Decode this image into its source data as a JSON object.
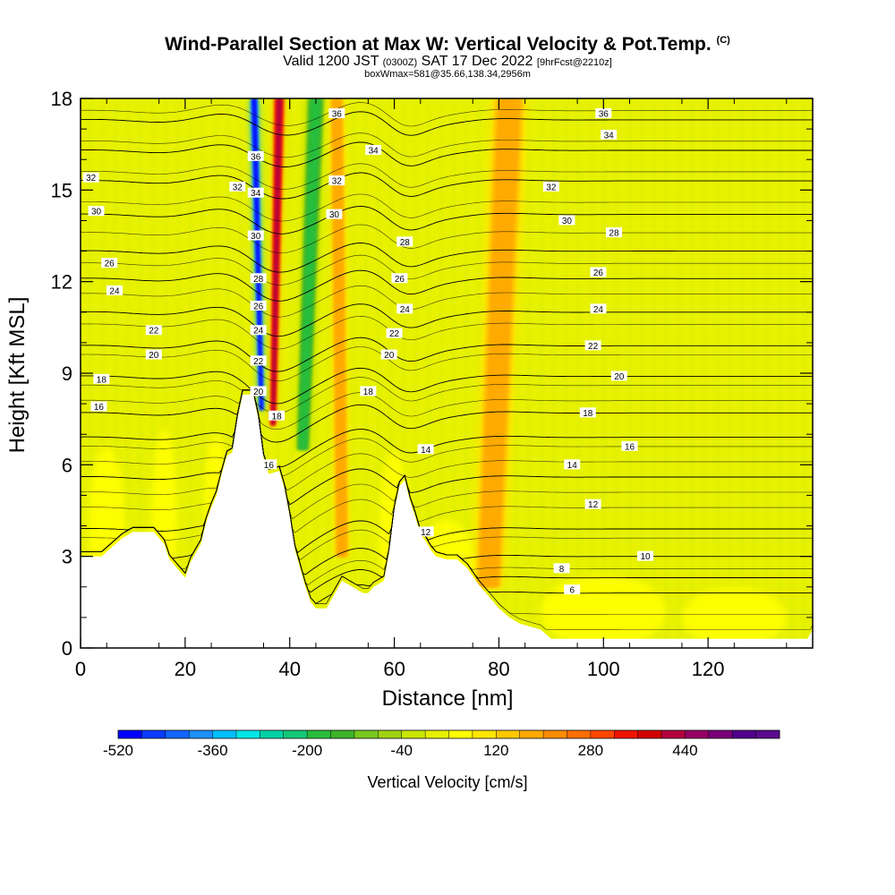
{
  "header": {
    "title_main": "Wind-Parallel Section at Max W: Vertical Velocity & Pot.Temp.",
    "title_mark": "(C)",
    "valid_prefix": "Valid 1200 JST",
    "valid_z": "(0300Z)",
    "valid_date": "SAT 17 Dec 2022",
    "forecast": "[9hrFcst@2210z]",
    "boxinfo": "boxWmax=581@35.66,138.34,2956m"
  },
  "chart_data": {
    "type": "heatmap",
    "xlabel": "Distance [nm]",
    "ylabel": "Height [Kft MSL]",
    "xlim": [
      0,
      140
    ],
    "ylim": [
      0,
      18
    ],
    "x_ticks": [
      "0",
      "20",
      "40",
      "60",
      "80",
      "100",
      "120"
    ],
    "y_ticks": [
      "0",
      "3",
      "6",
      "9",
      "12",
      "15",
      "18"
    ],
    "colorbar_label": "Vertical Velocity [cm/s]",
    "colorbar_ticks": [
      "-520",
      "-360",
      "-200",
      "-40",
      "120",
      "280",
      "440"
    ],
    "colorbar_range": [
      -520,
      600
    ],
    "colorbar_step": 40,
    "colorbar_colors": [
      "#0000ff",
      "#0a3cff",
      "#1464ff",
      "#1e90ff",
      "#00bfff",
      "#00e5e5",
      "#00d2a5",
      "#14c878",
      "#28be3c",
      "#3cb428",
      "#78c81e",
      "#a0d214",
      "#c8e600",
      "#e6f000",
      "#ffff00",
      "#ffe600",
      "#ffc800",
      "#ffaa00",
      "#ff8c00",
      "#ff6e00",
      "#ff4600",
      "#f01400",
      "#d20000",
      "#b4003c",
      "#960064",
      "#780078",
      "#50008c",
      "#5a0a8c"
    ],
    "background_value_cm_s": 0,
    "max_updraft_cm_s": 581,
    "terrain_profile": [
      [
        0,
        3
      ],
      [
        4,
        3
      ],
      [
        6,
        3.3
      ],
      [
        8,
        3.6
      ],
      [
        10,
        3.8
      ],
      [
        14,
        3.8
      ],
      [
        16,
        3.4
      ],
      [
        17,
        2.9
      ],
      [
        18,
        2.7
      ],
      [
        20,
        2.3
      ],
      [
        21,
        2.8
      ],
      [
        23,
        3.4
      ],
      [
        24,
        4.1
      ],
      [
        25,
        4.6
      ],
      [
        26,
        5.0
      ],
      [
        27,
        5.7
      ],
      [
        28,
        6.3
      ],
      [
        29,
        6.4
      ],
      [
        30,
        7.5
      ],
      [
        31,
        8.3
      ],
      [
        33,
        8.3
      ],
      [
        34,
        7.5
      ],
      [
        35,
        6.2
      ],
      [
        36,
        5.7
      ],
      [
        38,
        5.8
      ],
      [
        39,
        5.2
      ],
      [
        40,
        4.3
      ],
      [
        41,
        3.2
      ],
      [
        43,
        2.0
      ],
      [
        44,
        1.5
      ],
      [
        45,
        1.3
      ],
      [
        47,
        1.3
      ],
      [
        49,
        1.9
      ],
      [
        50,
        2.2
      ],
      [
        52,
        2.0
      ],
      [
        54,
        1.8
      ],
      [
        55,
        1.8
      ],
      [
        56,
        2.0
      ],
      [
        58,
        2.2
      ],
      [
        59,
        3.1
      ],
      [
        60,
        4.5
      ],
      [
        61,
        5.3
      ],
      [
        62,
        5.5
      ],
      [
        63,
        4.8
      ],
      [
        64,
        4.3
      ],
      [
        65,
        3.7
      ],
      [
        66,
        3.5
      ],
      [
        67,
        3.2
      ],
      [
        68,
        3.0
      ],
      [
        70,
        2.9
      ],
      [
        72,
        2.9
      ],
      [
        74,
        2.6
      ],
      [
        76,
        2.1
      ],
      [
        78,
        1.7
      ],
      [
        80,
        1.3
      ],
      [
        82,
        1.0
      ],
      [
        84,
        0.8
      ],
      [
        86,
        0.7
      ],
      [
        88,
        0.6
      ],
      [
        90,
        0.3
      ],
      [
        139,
        0.3
      ],
      [
        140,
        0.6
      ]
    ],
    "updraft_bands": [
      {
        "x_center": 36.8,
        "y_bottom": 7.3,
        "x_top": 38.0,
        "w_bottom": 1.3,
        "w_top": 2.4,
        "peak": "red"
      },
      {
        "x_center": 34.6,
        "y_bottom": 7.8,
        "x_top": 33.2,
        "w_bottom": 0.9,
        "w_top": 1.4,
        "peak": "blue"
      },
      {
        "x_center": 42.5,
        "y_bottom": 6.5,
        "x_top": 45.0,
        "w_bottom": 3.0,
        "w_top": 4.0,
        "peak": "green"
      },
      {
        "x_center": 50.0,
        "y_bottom": 3.0,
        "x_top": 49.0,
        "w_bottom": 3.0,
        "w_top": 3.0,
        "peak": "orange"
      },
      {
        "x_center": 78.0,
        "y_bottom": 2.0,
        "x_top": 82.0,
        "w_bottom": 6.0,
        "w_top": 7.0,
        "peak": "orange"
      }
    ],
    "isentropes": [
      {
        "theta": "6",
        "lx": 94,
        "ly": 1.9,
        "y_far": 1.8
      },
      {
        "theta": "8",
        "lx": 92,
        "ly": 2.6,
        "y_far": 2.3
      },
      {
        "theta": "10",
        "lx": 108,
        "ly": 3.0,
        "y_far": 3.0
      },
      {
        "theta": "12",
        "lx": 66,
        "ly": 3.8,
        "y_far": 3.9
      },
      {
        "theta": "12",
        "lx": 98,
        "ly": 4.7,
        "y_far": 4.6
      },
      {
        "theta": "14",
        "lx": 66,
        "ly": 6.5,
        "y_far": 5.6
      },
      {
        "theta": "14",
        "lx": 94,
        "ly": 6.0,
        "y_far": 5.6
      },
      {
        "theta": "16",
        "lx": 3.5,
        "ly": 7.9,
        "y_far": 6.9
      },
      {
        "theta": "16",
        "lx": 36,
        "ly": 6.0,
        "y_far": 6.9
      },
      {
        "theta": "16",
        "lx": 105,
        "ly": 6.6,
        "y_far": 6.9
      },
      {
        "theta": "18",
        "lx": 4,
        "ly": 8.8,
        "y_far": 7.7
      },
      {
        "theta": "18",
        "lx": 37.5,
        "ly": 7.6,
        "y_far": 7.7
      },
      {
        "theta": "18",
        "lx": 55,
        "ly": 8.4,
        "y_far": 7.7
      },
      {
        "theta": "18",
        "lx": 97,
        "ly": 7.7,
        "y_far": 7.7
      },
      {
        "theta": "20",
        "lx": 14,
        "ly": 9.6,
        "y_far": 8.9
      },
      {
        "theta": "20",
        "lx": 34,
        "ly": 8.4,
        "y_far": 8.9
      },
      {
        "theta": "20",
        "lx": 59,
        "ly": 9.6,
        "y_far": 8.9
      },
      {
        "theta": "20",
        "lx": 103,
        "ly": 8.9,
        "y_far": 8.9
      },
      {
        "theta": "22",
        "lx": 14,
        "ly": 10.4,
        "y_far": 9.9
      },
      {
        "theta": "22",
        "lx": 34,
        "ly": 9.4,
        "y_far": 9.9
      },
      {
        "theta": "22",
        "lx": 60,
        "ly": 10.3,
        "y_far": 9.9
      },
      {
        "theta": "22",
        "lx": 98,
        "ly": 9.9,
        "y_far": 9.9
      },
      {
        "theta": "24",
        "lx": 6.5,
        "ly": 11.7,
        "y_far": 11.0
      },
      {
        "theta": "24",
        "lx": 34,
        "ly": 10.4,
        "y_far": 11.0
      },
      {
        "theta": "24",
        "lx": 62,
        "ly": 11.1,
        "y_far": 11.0
      },
      {
        "theta": "24",
        "lx": 99,
        "ly": 11.1,
        "y_far": 11.0
      },
      {
        "theta": "26",
        "lx": 5.5,
        "ly": 12.6,
        "y_far": 12.1
      },
      {
        "theta": "26",
        "lx": 34,
        "ly": 11.2,
        "y_far": 12.1
      },
      {
        "theta": "26",
        "lx": 61,
        "ly": 12.1,
        "y_far": 12.1
      },
      {
        "theta": "26",
        "lx": 99,
        "ly": 12.3,
        "y_far": 12.1
      },
      {
        "theta": "28",
        "lx": 34,
        "ly": 12.1,
        "y_far": 13.0
      },
      {
        "theta": "28",
        "lx": 62,
        "ly": 13.3,
        "y_far": 13.0
      },
      {
        "theta": "28",
        "lx": 102,
        "ly": 13.6,
        "y_far": 13.0
      },
      {
        "theta": "30",
        "lx": 3,
        "ly": 14.3,
        "y_far": 14.2
      },
      {
        "theta": "30",
        "lx": 33.5,
        "ly": 13.5,
        "y_far": 14.2
      },
      {
        "theta": "30",
        "lx": 48.5,
        "ly": 14.2,
        "y_far": 14.2
      },
      {
        "theta": "30",
        "lx": 93,
        "ly": 14.0,
        "y_far": 14.2
      },
      {
        "theta": "32",
        "lx": 2,
        "ly": 15.4,
        "y_far": 15.3
      },
      {
        "theta": "32",
        "lx": 30,
        "ly": 15.1,
        "y_far": 15.3
      },
      {
        "theta": "32",
        "lx": 49,
        "ly": 15.3,
        "y_far": 15.3
      },
      {
        "theta": "32",
        "lx": 90,
        "ly": 15.1,
        "y_far": 15.3
      },
      {
        "theta": "34",
        "lx": 33.5,
        "ly": 14.9,
        "y_far": 16.3
      },
      {
        "theta": "34",
        "lx": 56,
        "ly": 16.3,
        "y_far": 16.3
      },
      {
        "theta": "34",
        "lx": 101,
        "ly": 16.8,
        "y_far": 16.3
      },
      {
        "theta": "36",
        "lx": 33.5,
        "ly": 16.1,
        "y_far": 17.3
      },
      {
        "theta": "36",
        "lx": 49,
        "ly": 17.5,
        "y_far": 17.3
      },
      {
        "theta": "36",
        "lx": 100,
        "ly": 17.5,
        "y_far": 17.3
      }
    ]
  }
}
